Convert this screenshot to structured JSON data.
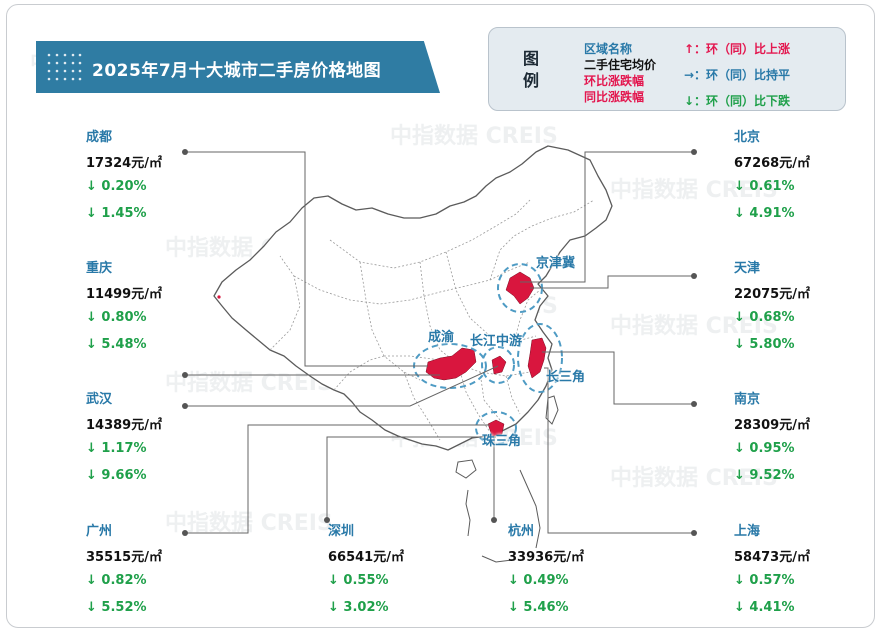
{
  "title": "2025年7月十大城市二手房价格地图",
  "legend": {
    "title": "图例",
    "fields": [
      "区域名称",
      "二手住宅均价",
      "环比涨跌幅",
      "同比涨跌幅"
    ],
    "field_colors": [
      "#2979a8",
      "#111111",
      "#e3174f",
      "#e3174f"
    ],
    "symbols": [
      {
        "text": "↑：环（同）比上涨",
        "color": "#e3174f"
      },
      {
        "text": "→：环（同）比持平",
        "color": "#2979a8"
      },
      {
        "text": "↓：环（同）比下跌",
        "color": "#1fa04a"
      }
    ]
  },
  "regions": [
    "京津冀",
    "成渝",
    "长江中游",
    "长三角",
    "珠三角"
  ],
  "cities": [
    {
      "name": "成都",
      "price": "17324元/㎡",
      "mom": "↓ 0.20%",
      "yoy": "↓ 1.45%"
    },
    {
      "name": "重庆",
      "price": "11499元/㎡",
      "mom": "↓ 0.80%",
      "yoy": "↓ 5.48%"
    },
    {
      "name": "武汉",
      "price": "14389元/㎡",
      "mom": "↓ 1.17%",
      "yoy": "↓ 9.66%"
    },
    {
      "name": "广州",
      "price": "35515元/㎡",
      "mom": "↓ 0.82%",
      "yoy": "↓ 5.52%"
    },
    {
      "name": "深圳",
      "price": "66541元/㎡",
      "mom": "↓ 0.55%",
      "yoy": "↓ 3.02%"
    },
    {
      "name": "杭州",
      "price": "33936元/㎡",
      "mom": "↓ 0.49%",
      "yoy": "↓ 5.46%"
    },
    {
      "name": "北京",
      "price": "67268元/㎡",
      "mom": "↓ 0.61%",
      "yoy": "↓ 4.91%"
    },
    {
      "name": "天津",
      "price": "22075元/㎡",
      "mom": "↓ 0.68%",
      "yoy": "↓ 5.80%"
    },
    {
      "name": "南京",
      "price": "28309元/㎡",
      "mom": "↓ 0.95%",
      "yoy": "↓ 9.52%"
    },
    {
      "name": "上海",
      "price": "58473元/㎡",
      "mom": "↓ 0.57%",
      "yoy": "↓ 4.41%"
    }
  ],
  "watermark": "中指数据 CREIS",
  "colors": {
    "accent": "#2f7ca3",
    "city_name": "#2979a8",
    "down": "#1fa04a",
    "up": "#e3174f",
    "highlight": "#d9163e"
  }
}
